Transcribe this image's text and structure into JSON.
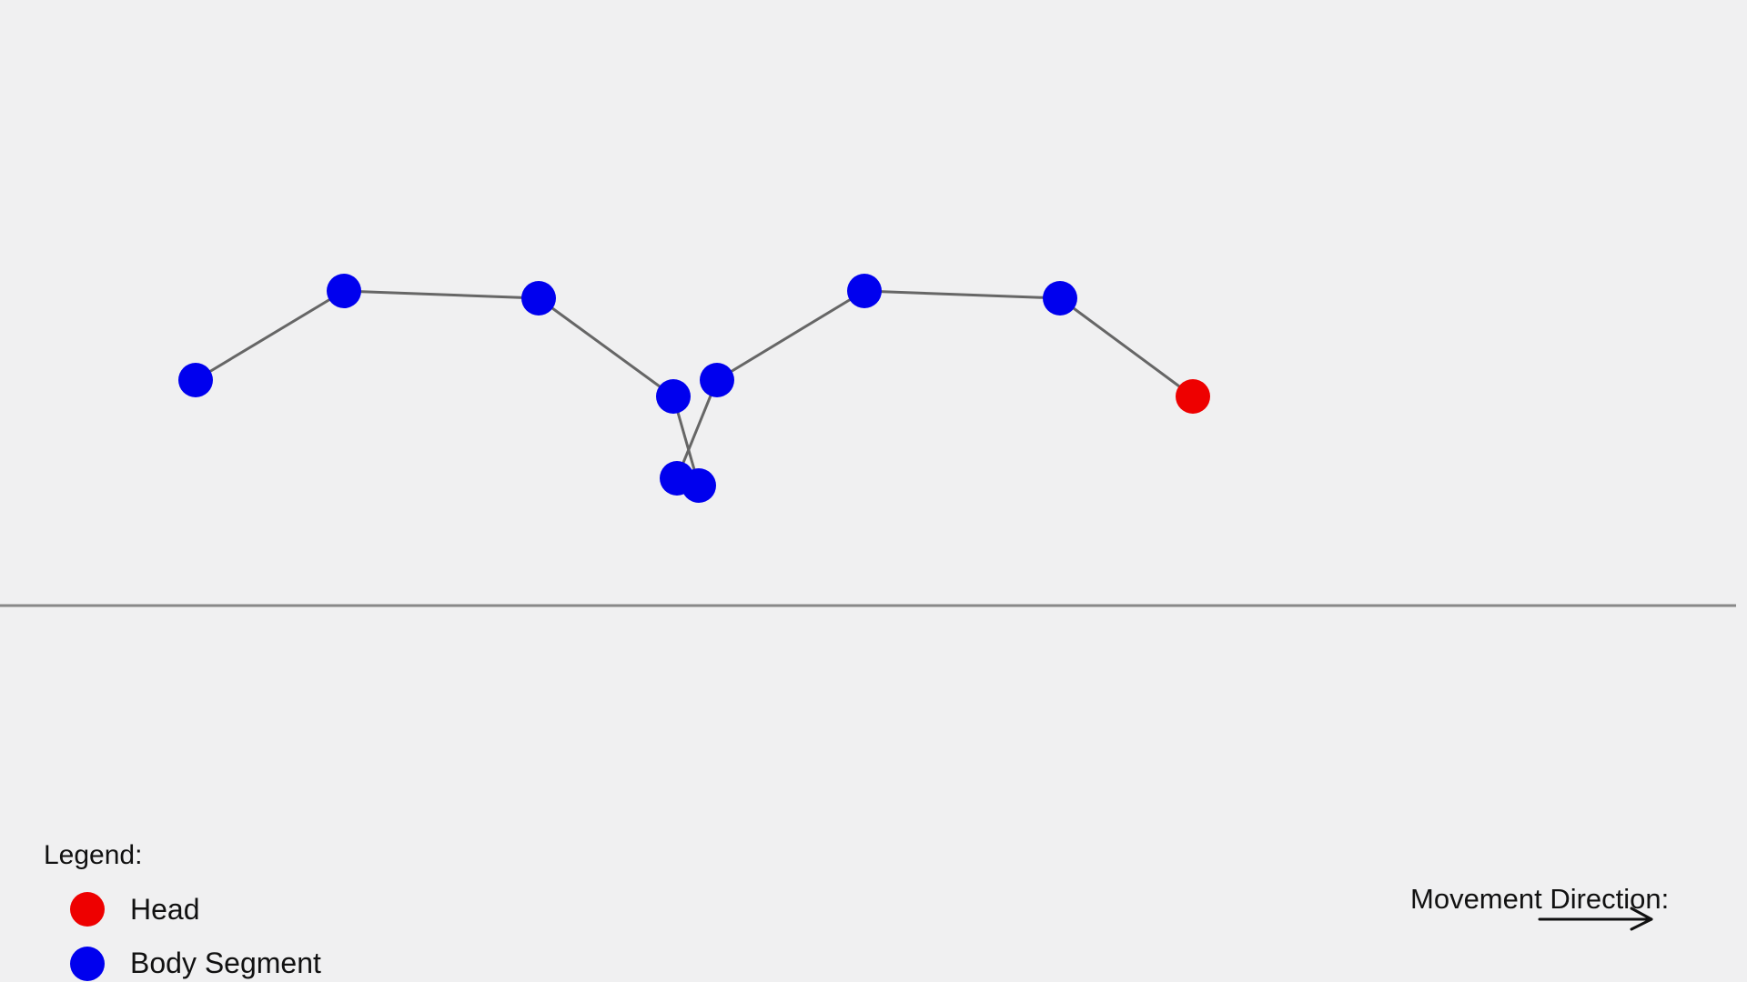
{
  "colors": {
    "background": "#f0f0f1",
    "head": "#ee0000",
    "body_segment": "#0000ee",
    "link": "#666666",
    "ground": "#888888",
    "text": "#111111"
  },
  "legend": {
    "title": "Legend:",
    "head_label": "Head",
    "body_label": "Body Segment"
  },
  "direction": {
    "label": "Movement Direction:",
    "icon": "arrow-right-icon"
  }
}
